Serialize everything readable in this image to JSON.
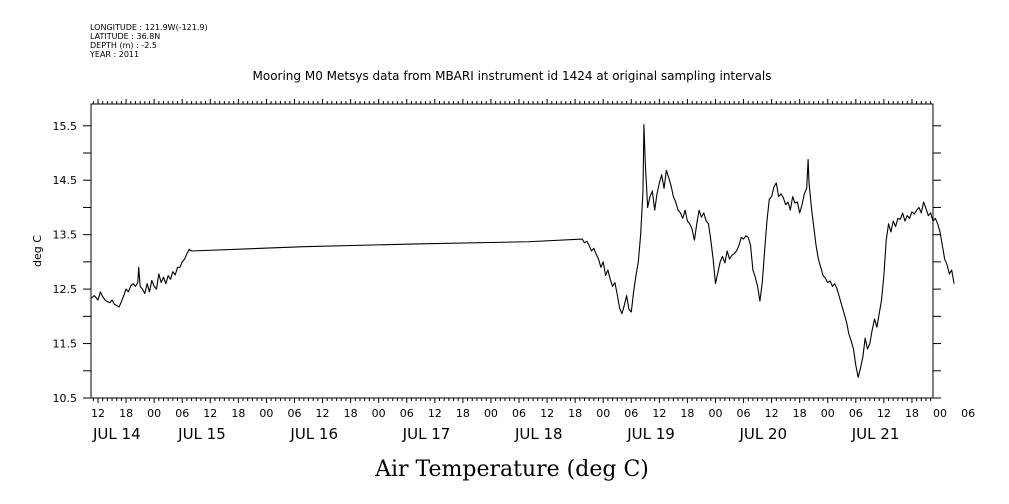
{
  "header": {
    "meta_lines": [
      "LONGITUDE : 121.9W(-121.9)",
      "LATITUDE : 36.8N",
      "DEPTH (m) : -2.5",
      "YEAR : 2011"
    ],
    "title": "Mooring M0 Metsys data from MBARI instrument id 1424 at original sampling intervals"
  },
  "chart_data": {
    "type": "line",
    "title": "Mooring M0 Metsys data from MBARI instrument id 1424 at original sampling intervals",
    "xlabel": "Air Temperature (deg C)",
    "ylabel": "deg C",
    "x_unit": "hours since JUL 14 00:00 (2011)",
    "xlim": [
      10.5,
      190.5
    ],
    "ylim": [
      10.5,
      15.9
    ],
    "yticks": [
      10.5,
      11.5,
      12.5,
      13.5,
      14.5,
      15.5
    ],
    "hour_tick_labels": [
      "12",
      "18",
      "00",
      "06",
      "12",
      "18",
      "00",
      "06",
      "12",
      "18",
      "00",
      "06",
      "12",
      "18",
      "00",
      "06",
      "12",
      "18",
      "00",
      "06",
      "12",
      "18",
      "00",
      "06",
      "12",
      "18",
      "00",
      "06",
      "12",
      "18",
      "00",
      "06"
    ],
    "day_labels": [
      "JUL 14",
      "JUL 15",
      "JUL 16",
      "JUL 17",
      "JUL 18",
      "JUL 19",
      "JUL 20",
      "JUL 21"
    ],
    "grid": false,
    "series": [
      {
        "color": "#000000",
        "points": [
          [
            10.5,
            12.33
          ],
          [
            11.2,
            12.38
          ],
          [
            12,
            12.3
          ],
          [
            12.5,
            12.45
          ],
          [
            13,
            12.36
          ],
          [
            13.5,
            12.3
          ],
          [
            14,
            12.27
          ],
          [
            14.5,
            12.25
          ],
          [
            15,
            12.3
          ],
          [
            15.5,
            12.22
          ],
          [
            16,
            12.2
          ],
          [
            16.5,
            12.17
          ],
          [
            17,
            12.27
          ],
          [
            17.5,
            12.38
          ],
          [
            18,
            12.5
          ],
          [
            18.5,
            12.45
          ],
          [
            19,
            12.56
          ],
          [
            19.5,
            12.6
          ],
          [
            20,
            12.55
          ],
          [
            20.5,
            12.62
          ],
          [
            20.7,
            12.9
          ],
          [
            21,
            12.55
          ],
          [
            21.5,
            12.5
          ],
          [
            22,
            12.42
          ],
          [
            22.5,
            12.6
          ],
          [
            23,
            12.45
          ],
          [
            23.5,
            12.66
          ],
          [
            24,
            12.55
          ],
          [
            24.5,
            12.5
          ],
          [
            25,
            12.78
          ],
          [
            25.5,
            12.62
          ],
          [
            26,
            12.72
          ],
          [
            26.5,
            12.6
          ],
          [
            27,
            12.75
          ],
          [
            27.5,
            12.68
          ],
          [
            28,
            12.82
          ],
          [
            28.5,
            12.76
          ],
          [
            29,
            12.9
          ],
          [
            29.5,
            12.9
          ],
          [
            30,
            13.0
          ],
          [
            30.5,
            13.05
          ],
          [
            31,
            13.15
          ],
          [
            31.5,
            13.23
          ],
          [
            32,
            13.2
          ],
          [
            56,
            13.28
          ],
          [
            80,
            13.33
          ],
          [
            104,
            13.37
          ],
          [
            115.5,
            13.42
          ],
          [
            116,
            13.35
          ],
          [
            116.5,
            13.38
          ],
          [
            117,
            13.3
          ],
          [
            117.5,
            13.2
          ],
          [
            118,
            13.25
          ],
          [
            118.5,
            13.14
          ],
          [
            119,
            13.05
          ],
          [
            119.5,
            12.9
          ],
          [
            120,
            13.0
          ],
          [
            120.5,
            12.75
          ],
          [
            121,
            12.85
          ],
          [
            121.5,
            12.68
          ],
          [
            122,
            12.55
          ],
          [
            122.5,
            12.62
          ],
          [
            123,
            12.4
          ],
          [
            123.5,
            12.15
          ],
          [
            124,
            12.05
          ],
          [
            124.5,
            12.2
          ],
          [
            125,
            12.38
          ],
          [
            125.5,
            12.13
          ],
          [
            126,
            12.08
          ],
          [
            126.5,
            12.45
          ],
          [
            127,
            12.75
          ],
          [
            127.5,
            13.0
          ],
          [
            128,
            13.5
          ],
          [
            128.5,
            14.3
          ],
          [
            128.7,
            15.52
          ],
          [
            129,
            14.8
          ],
          [
            129.5,
            14.0
          ],
          [
            130,
            14.2
          ],
          [
            130.5,
            14.3
          ],
          [
            131,
            13.95
          ],
          [
            131.5,
            14.25
          ],
          [
            132,
            14.45
          ],
          [
            132.5,
            14.6
          ],
          [
            133,
            14.35
          ],
          [
            133.5,
            14.68
          ],
          [
            134,
            14.55
          ],
          [
            134.5,
            14.4
          ],
          [
            135,
            14.2
          ],
          [
            135.5,
            14.1
          ],
          [
            136,
            13.95
          ],
          [
            136.5,
            13.9
          ],
          [
            137,
            13.8
          ],
          [
            137.5,
            13.95
          ],
          [
            138,
            13.75
          ],
          [
            138.5,
            13.7
          ],
          [
            139,
            13.6
          ],
          [
            139.5,
            13.4
          ],
          [
            140,
            13.7
          ],
          [
            140.5,
            13.95
          ],
          [
            141,
            13.82
          ],
          [
            141.5,
            13.9
          ],
          [
            142,
            13.75
          ],
          [
            142.5,
            13.7
          ],
          [
            143,
            13.4
          ],
          [
            143.5,
            13.05
          ],
          [
            144,
            12.6
          ],
          [
            144.5,
            12.8
          ],
          [
            145,
            13.0
          ],
          [
            145.5,
            13.1
          ],
          [
            146,
            12.98
          ],
          [
            146.5,
            13.2
          ],
          [
            147,
            13.05
          ],
          [
            147.5,
            13.12
          ],
          [
            148,
            13.15
          ],
          [
            148.5,
            13.2
          ],
          [
            149,
            13.3
          ],
          [
            149.5,
            13.45
          ],
          [
            150,
            13.42
          ],
          [
            150.5,
            13.48
          ],
          [
            151,
            13.45
          ],
          [
            151.5,
            13.3
          ],
          [
            152,
            12.85
          ],
          [
            152.5,
            12.72
          ],
          [
            153,
            12.55
          ],
          [
            153.5,
            12.28
          ],
          [
            154,
            12.62
          ],
          [
            154.5,
            13.2
          ],
          [
            155,
            13.75
          ],
          [
            155.5,
            14.15
          ],
          [
            156,
            14.2
          ],
          [
            156.5,
            14.38
          ],
          [
            157,
            14.45
          ],
          [
            157.5,
            14.2
          ],
          [
            158,
            14.25
          ],
          [
            158.5,
            14.18
          ],
          [
            159,
            14.05
          ],
          [
            159.5,
            14.1
          ],
          [
            160,
            13.95
          ],
          [
            160.5,
            14.2
          ],
          [
            161,
            14.08
          ],
          [
            161.5,
            14.1
          ],
          [
            162,
            13.9
          ],
          [
            162.5,
            14.05
          ],
          [
            163,
            14.25
          ],
          [
            163.5,
            14.35
          ],
          [
            163.8,
            14.88
          ],
          [
            164,
            14.45
          ],
          [
            164.5,
            14.0
          ],
          [
            165,
            13.65
          ],
          [
            165.5,
            13.3
          ],
          [
            166,
            13.05
          ],
          [
            166.5,
            12.9
          ],
          [
            167,
            12.75
          ],
          [
            167.5,
            12.7
          ],
          [
            168,
            12.62
          ],
          [
            168.5,
            12.65
          ],
          [
            169,
            12.55
          ],
          [
            169.5,
            12.6
          ],
          [
            170,
            12.5
          ],
          [
            170.5,
            12.35
          ],
          [
            171,
            12.2
          ],
          [
            171.5,
            12.05
          ],
          [
            172,
            11.9
          ],
          [
            172.5,
            11.68
          ],
          [
            173,
            11.55
          ],
          [
            173.5,
            11.4
          ],
          [
            174,
            11.1
          ],
          [
            174.5,
            10.88
          ],
          [
            175,
            11.05
          ],
          [
            175.5,
            11.25
          ],
          [
            176,
            11.6
          ],
          [
            176.5,
            11.4
          ],
          [
            177,
            11.5
          ],
          [
            177.5,
            11.75
          ],
          [
            178,
            11.95
          ],
          [
            178.5,
            11.8
          ],
          [
            179,
            12.05
          ],
          [
            179.5,
            12.3
          ],
          [
            180,
            12.75
          ],
          [
            180.5,
            13.4
          ],
          [
            181,
            13.7
          ],
          [
            181.5,
            13.55
          ],
          [
            182,
            13.75
          ],
          [
            182.5,
            13.65
          ],
          [
            183,
            13.8
          ],
          [
            183.5,
            13.78
          ],
          [
            184,
            13.9
          ],
          [
            184.5,
            13.75
          ],
          [
            185,
            13.85
          ],
          [
            185.5,
            13.8
          ],
          [
            186,
            13.92
          ],
          [
            186.5,
            13.88
          ],
          [
            187,
            13.95
          ],
          [
            187.5,
            14.0
          ],
          [
            188,
            13.9
          ],
          [
            188.5,
            14.1
          ],
          [
            189,
            13.98
          ],
          [
            189.5,
            13.85
          ],
          [
            190,
            13.9
          ],
          [
            190.5,
            13.75
          ],
          [
            191,
            13.8
          ],
          [
            191.5,
            13.7
          ],
          [
            192,
            13.55
          ],
          [
            192.5,
            13.3
          ],
          [
            193,
            13.05
          ],
          [
            193.5,
            12.95
          ],
          [
            194,
            12.78
          ],
          [
            194.5,
            12.85
          ],
          [
            195,
            12.6
          ]
        ]
      }
    ]
  }
}
